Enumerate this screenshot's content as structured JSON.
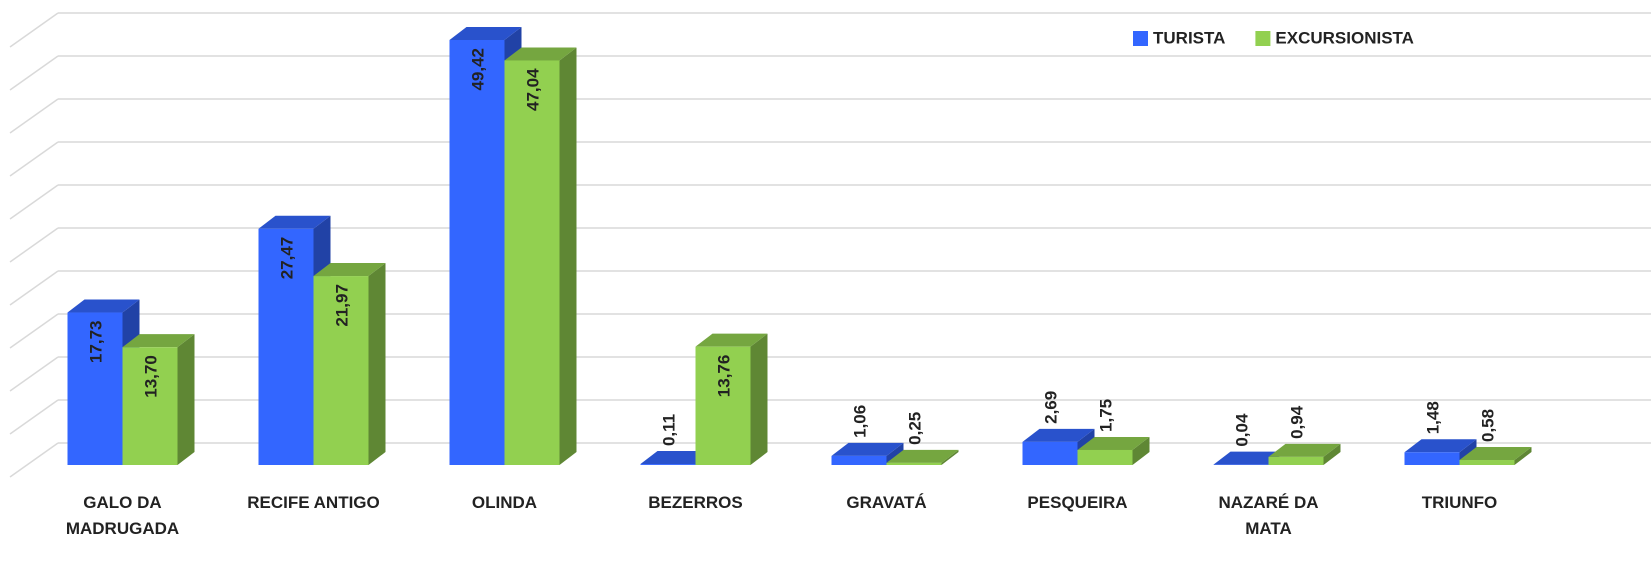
{
  "chart_data": {
    "type": "bar3d",
    "categories": [
      "GALO DA MADRUGADA",
      "RECIFE ANTIGO",
      "OLINDA",
      "BEZERROS",
      "GRAVATÁ",
      "PESQUEIRA",
      "NAZARÉ DA MATA",
      "TRIUNFO"
    ],
    "series": [
      {
        "name": "TURISTA",
        "color": "#3366ff",
        "values": [
          17.73,
          27.47,
          49.42,
          0.11,
          1.06,
          2.69,
          0.04,
          1.48
        ],
        "value_labels": [
          "17,73",
          "27,47",
          "49,42",
          "0,11",
          "1,06",
          "2,69",
          "0,04",
          "1,48"
        ]
      },
      {
        "name": "EXCURSIONISTA",
        "color": "#92d050",
        "values": [
          13.7,
          21.97,
          47.04,
          13.76,
          0.25,
          1.75,
          0.94,
          0.58
        ],
        "value_labels": [
          "13,70",
          "21,97",
          "47,04",
          "13,76",
          "0,25",
          "1,75",
          "0,94",
          "0,58"
        ]
      }
    ],
    "ylim": [
      0,
      50
    ],
    "yticks": [
      0,
      5,
      10,
      15,
      20,
      25,
      30,
      35,
      40,
      45,
      50
    ],
    "grid": true,
    "legend": "top-right"
  }
}
